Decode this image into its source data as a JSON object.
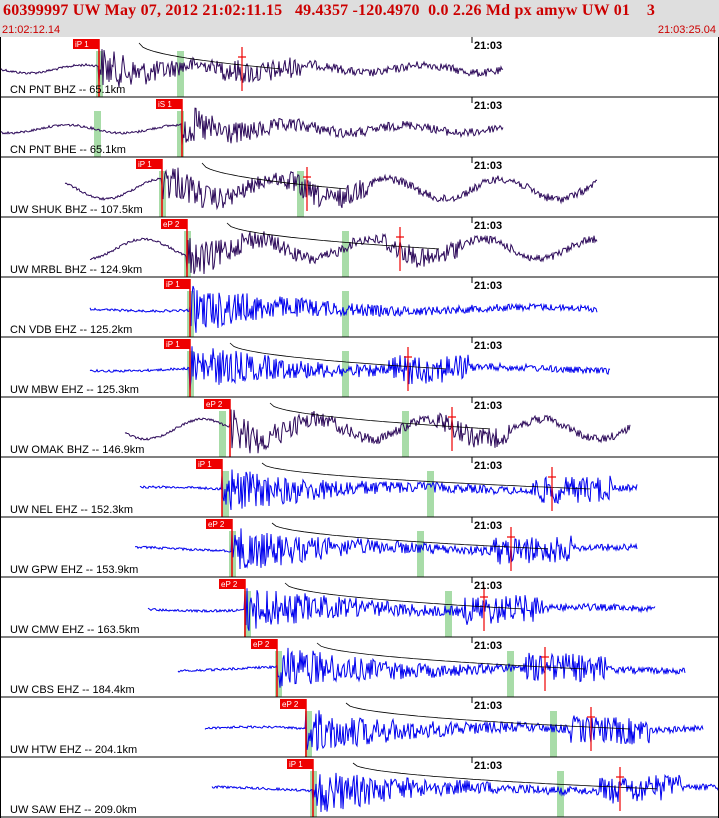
{
  "header": {
    "title": "60399997 UW May 07, 2012 21:02:11.15   49.4357 -120.4970  0.0 2.26 Md px amyw UW 01    3",
    "start_time": "21:02:12.14",
    "end_time": "21:03:25.04"
  },
  "colors": {
    "header_bg": "#dedede",
    "header_text": "#cc0000",
    "bhz_trace": "#2d0a5a",
    "ehz_trace": "#0000ee",
    "pick_box": "#ee0000",
    "pick_band": "#a8dca8",
    "coda_line": "#000000",
    "grid": "#000000"
  },
  "chart_data": {
    "type": "seismogram",
    "time_axis": {
      "start": "21:02:12.14",
      "end": "21:03:25.04",
      "minute_tick": "21:03"
    },
    "traces": [
      {
        "station": "CN PNT BHZ -- 65.1km",
        "channel_type": "BHZ",
        "pick": "iP 1",
        "time_label": "21:03"
      },
      {
        "station": "CN PNT BHE -- 65.1km",
        "channel_type": "BHE",
        "pick": "iS 1",
        "time_label": "21:03"
      },
      {
        "station": "UW SHUK BHZ -- 107.5km",
        "channel_type": "BHZ",
        "pick": "iP 1",
        "time_label": "21:03"
      },
      {
        "station": "UW MRBL BHZ -- 124.9km",
        "channel_type": "BHZ",
        "pick": "eP 2",
        "time_label": "21:03"
      },
      {
        "station": "CN VDB EHZ -- 125.2km",
        "channel_type": "EHZ",
        "pick": "iP 1",
        "time_label": "21:03"
      },
      {
        "station": "UW MBW EHZ -- 125.3km",
        "channel_type": "EHZ",
        "pick": "iP 1",
        "time_label": "21:03"
      },
      {
        "station": "UW OMAK BHZ -- 146.9km",
        "channel_type": "BHZ",
        "pick": "eP 2",
        "time_label": "21:03"
      },
      {
        "station": "UW NEL EHZ -- 152.3km",
        "channel_type": "EHZ",
        "pick": "iP 1",
        "time_label": "21:03"
      },
      {
        "station": "UW GPW EHZ -- 153.9km",
        "channel_type": "EHZ",
        "pick": "eP 2",
        "time_label": "21:03"
      },
      {
        "station": "UW CMW EHZ -- 163.5km",
        "channel_type": "EHZ",
        "pick": "eP 2",
        "time_label": "21:03"
      },
      {
        "station": "UW CBS EHZ -- 184.4km",
        "channel_type": "EHZ",
        "pick": "eP 2",
        "time_label": "21:03"
      },
      {
        "station": "UW HTW EHZ -- 204.1km",
        "channel_type": "EHZ",
        "pick": "eP 2",
        "time_label": "21:03"
      },
      {
        "station": "UW SAW EHZ -- 209.0km",
        "channel_type": "EHZ",
        "pick": "iP 1",
        "time_label": "21:03"
      }
    ]
  }
}
